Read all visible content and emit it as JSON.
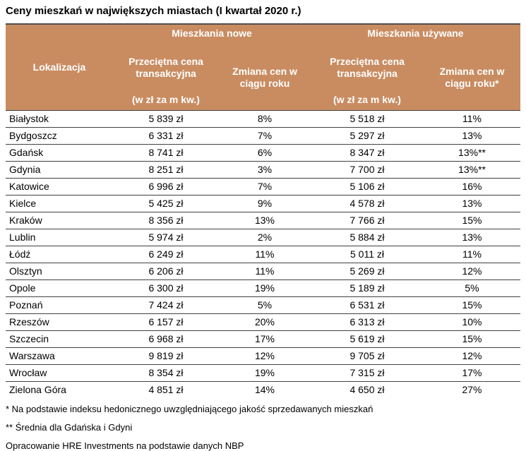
{
  "chart_data": {
    "type": "table",
    "title": "Ceny mieszkań w największych miastach (I kwartał 2020 r.)",
    "groups": [
      "Mieszkania nowe",
      "Mieszkania używane"
    ],
    "columns": [
      "Lokalizacja",
      "Przeciętna cena transakcyjna",
      "Zmiana cen w ciągu roku",
      "Przeciętna cena transakcyjna",
      "Zmiana cen w ciągu roku*"
    ],
    "unit_label": "(w zł za m kw.)",
    "rows": [
      [
        "Białystok",
        "5 839 zł",
        "8%",
        "5 518 zł",
        "11%"
      ],
      [
        "Bydgoszcz",
        "6 331 zł",
        "7%",
        "5 297 zł",
        "13%"
      ],
      [
        "Gdańsk",
        "8 741 zł",
        "6%",
        "8 347 zł",
        "13%**"
      ],
      [
        "Gdynia",
        "8 251 zł",
        "3%",
        "7 700 zł",
        "13%**"
      ],
      [
        "Katowice",
        "6 996 zł",
        "7%",
        "5 106 zł",
        "16%"
      ],
      [
        "Kielce",
        "5 425 zł",
        "9%",
        "4 578 zł",
        "13%"
      ],
      [
        "Kraków",
        "8 356 zł",
        "13%",
        "7 766 zł",
        "15%"
      ],
      [
        "Lublin",
        "5 974 zł",
        "2%",
        "5 884 zł",
        "13%"
      ],
      [
        "Łódź",
        "6 249 zł",
        "11%",
        "5 011 zł",
        "11%"
      ],
      [
        "Olsztyn",
        "6 206 zł",
        "11%",
        "5 269 zł",
        "12%"
      ],
      [
        "Opole",
        "6 300 zł",
        "19%",
        "5 189 zł",
        "5%"
      ],
      [
        "Poznań",
        "7 424 zł",
        "5%",
        "6 531 zł",
        "15%"
      ],
      [
        "Rzeszów",
        "6 157 zł",
        "20%",
        "6 313 zł",
        "10%"
      ],
      [
        "Szczecin",
        "6 968 zł",
        "17%",
        "5 619 zł",
        "15%"
      ],
      [
        "Warszawa",
        "9 819 zł",
        "12%",
        "9 705 zł",
        "12%"
      ],
      [
        "Wrocław",
        "8 354 zł",
        "19%",
        "7 315 zł",
        "17%"
      ],
      [
        "Zielona Góra",
        "4 851 zł",
        "14%",
        "4 650 zł",
        "27%"
      ]
    ]
  },
  "footnotes": [
    "* Na podstawie indeksu hedonicznego uwzględniającego jakość sprzedawanych mieszkań",
    "** Średnia dla Gdańska i Gdyni",
    "Opracowanie HRE Investments na podstawie danych NBP"
  ],
  "colors": {
    "header_bg": "#C98C61",
    "header_text": "#FFFFFF",
    "row_line": "#404040"
  }
}
